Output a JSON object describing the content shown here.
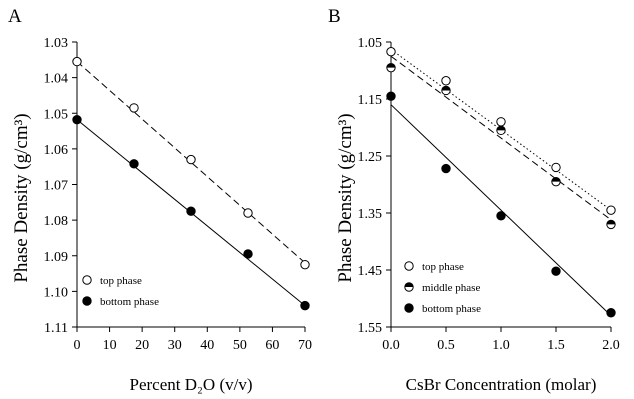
{
  "chart_data": [
    {
      "panel": "A",
      "type": "scatter",
      "xlabel": "Percent D₂O (v/v)",
      "ylabel": "Phase Density (g/cm³)",
      "xlim": [
        0,
        70
      ],
      "ylim": [
        1.03,
        1.11
      ],
      "y_inverted": true,
      "xticks": [
        "0",
        "10",
        "20",
        "30",
        "40",
        "50",
        "60",
        "70"
      ],
      "yticks": [
        "1.03",
        "1.04",
        "1.05",
        "1.06",
        "1.07",
        "1.08",
        "1.09",
        "1.10",
        "1.11"
      ],
      "legend_position": "bottom-left",
      "series": [
        {
          "name": "top phase",
          "marker": "open",
          "line": "dashed",
          "x": [
            0,
            17.5,
            35,
            52.5,
            70
          ],
          "y": [
            1.0355,
            1.0485,
            1.063,
            1.078,
            1.0925
          ],
          "fit": [
            [
              0,
              1.0355
            ],
            [
              70,
              1.092
            ]
          ]
        },
        {
          "name": "bottom phase",
          "marker": "filled",
          "line": "solid",
          "x": [
            0,
            17.5,
            35,
            52.5,
            70
          ],
          "y": [
            1.0518,
            1.0642,
            1.0775,
            1.0895,
            1.104
          ],
          "fit": [
            [
              0,
              1.0518
            ],
            [
              70,
              1.104
            ]
          ]
        }
      ]
    },
    {
      "panel": "B",
      "type": "scatter",
      "xlabel": "CsBr Concentration (molar)",
      "ylabel": "Phase Density (g/cm³)",
      "xlim": [
        0,
        2
      ],
      "ylim": [
        1.05,
        1.55
      ],
      "y_inverted": true,
      "xticks": [
        "0.0",
        "0.5",
        "1.0",
        "1.5",
        "2.0"
      ],
      "yticks": [
        "1.05",
        "1.15",
        "1.25",
        "1.35",
        "1.45",
        "1.55"
      ],
      "legend_position": "bottom-left",
      "series": [
        {
          "name": "top phase",
          "marker": "open",
          "line": "dotted",
          "x": [
            0,
            0.5,
            1.0,
            1.5,
            2.0
          ],
          "y": [
            1.067,
            1.118,
            1.19,
            1.27,
            1.345
          ],
          "fit": [
            [
              0,
              1.063
            ],
            [
              2.0,
              1.345
            ]
          ]
        },
        {
          "name": "middle phase",
          "marker": "half",
          "line": "dashed",
          "x": [
            0,
            0.5,
            1.0,
            1.5,
            2.0
          ],
          "y": [
            1.095,
            1.135,
            1.205,
            1.295,
            1.37
          ],
          "fit": [
            [
              0,
              1.075
            ],
            [
              2.0,
              1.362
            ]
          ]
        },
        {
          "name": "bottom phase",
          "marker": "filled",
          "line": "solid",
          "x": [
            0,
            0.5,
            1.0,
            1.5,
            2.0
          ],
          "y": [
            1.145,
            1.272,
            1.355,
            1.452,
            1.525
          ],
          "fit": [
            [
              0,
              1.16
            ],
            [
              2.0,
              1.53
            ]
          ]
        }
      ]
    }
  ]
}
